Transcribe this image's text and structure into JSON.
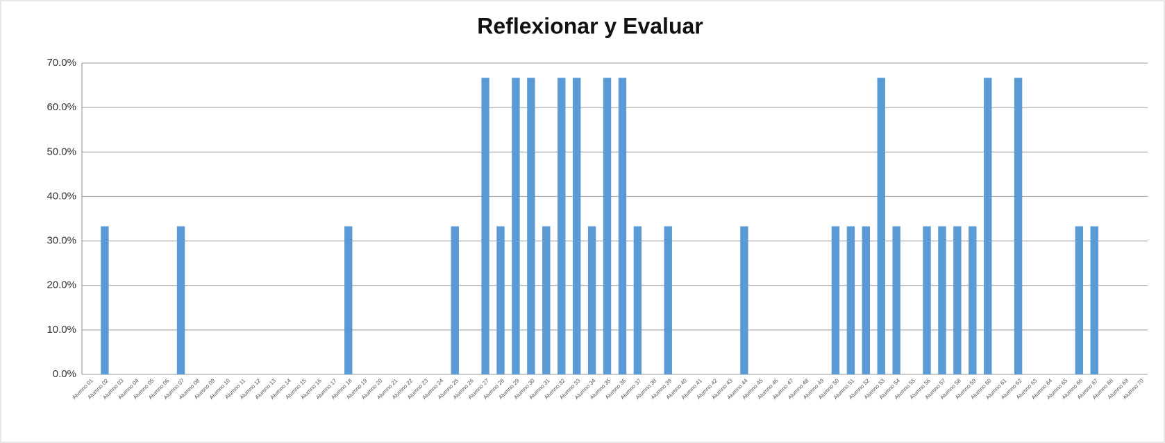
{
  "chart_data": {
    "type": "bar",
    "title": "Reflexionar y Evaluar",
    "categories": [
      "Alumno 01",
      "Alumno 02",
      "Alumno 03",
      "Alumno 04",
      "Alumno 05",
      "Alumno 06",
      "Alumno 07",
      "Alumno 08",
      "Alumno 09",
      "Alumno 10",
      "Alumno 11",
      "Alumno 12",
      "Alumno 13",
      "Alumno 14",
      "Alumno 15",
      "Alumno 16",
      "Alumno 17",
      "Alumno 18",
      "Alumno 19",
      "Alumno 20",
      "Alumno 21",
      "Alumno 22",
      "Alumno 23",
      "Alumno 24",
      "Alumno 25",
      "Alumno 26",
      "Alumno 27",
      "Alumno 28",
      "Alumno 29",
      "Alumno 30",
      "Alumno 31",
      "Alumno 32",
      "Alumno 33",
      "Alumno 34",
      "Alumno 35",
      "Alumno 36",
      "Alumno 37",
      "Alumno 38",
      "Alumno 39",
      "Alumno 40",
      "Alumno 41",
      "Alumno 42",
      "Alumno 43",
      "Alumno 44",
      "Alumno 45",
      "Alumno 46",
      "Alumno 47",
      "Alumno 48",
      "Alumno 49",
      "Alumno 50",
      "Alumno 51",
      "Alumno 52",
      "Alumno 53",
      "Alumno 54",
      "Alumno 55",
      "Alumno 56",
      "Alumno 57",
      "Alumno 58",
      "Alumno 59",
      "Alumno 60",
      "Alumno 61",
      "Alumno 62",
      "Alumno 63",
      "Alumno 64",
      "Alumno 65",
      "Alumno 66",
      "Alumno 67",
      "Alumno 68",
      "Alumno 69",
      "Alumno 70"
    ],
    "values": [
      0,
      33.3,
      0,
      0,
      0,
      0,
      33.3,
      0,
      0,
      0,
      0,
      0,
      0,
      0,
      0,
      0,
      0,
      33.3,
      0,
      0,
      0,
      0,
      0,
      0,
      33.3,
      0,
      66.7,
      33.3,
      66.7,
      66.7,
      33.3,
      66.7,
      66.7,
      33.3,
      66.7,
      66.7,
      33.3,
      0,
      33.3,
      0,
      0,
      0,
      0,
      33.3,
      0,
      0,
      0,
      0,
      0,
      33.3,
      33.3,
      33.3,
      66.7,
      33.3,
      0,
      33.3,
      33.3,
      33.3,
      33.3,
      66.7,
      0,
      66.7,
      0,
      0,
      0,
      33.3,
      33.3,
      0,
      0,
      0
    ],
    "color": "#5b9bd5",
    "ylim": [
      0,
      70
    ],
    "yticks": [
      {
        "value": 0,
        "label": "0.0%"
      },
      {
        "value": 10,
        "label": "10.0%"
      },
      {
        "value": 20,
        "label": "20.0%"
      },
      {
        "value": 30,
        "label": "30.0%"
      },
      {
        "value": 40,
        "label": "40.0%"
      },
      {
        "value": 50,
        "label": "50.0%"
      },
      {
        "value": 60,
        "label": "60.0%"
      },
      {
        "value": 70,
        "label": "70.0%"
      }
    ],
    "grid": true
  }
}
